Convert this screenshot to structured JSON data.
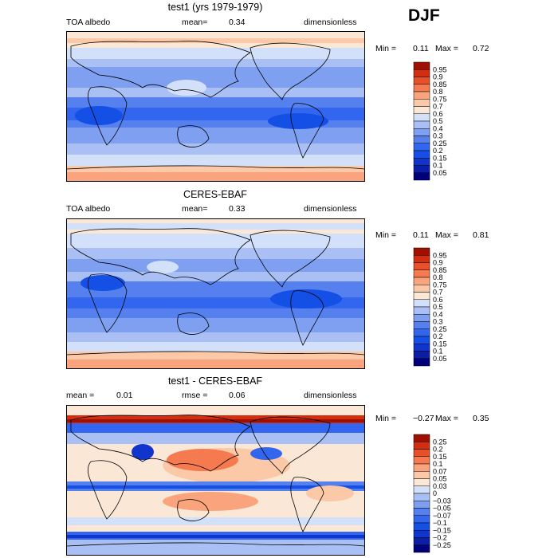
{
  "season": "DJF",
  "panels": [
    {
      "title": "test1 (yrs 1979-1979)",
      "left_label": "TOA albedo",
      "mean_label": "mean=",
      "mean_value": "0.34",
      "right_label": "dimensionless",
      "min_label": "Min =",
      "min_value": "0.11",
      "max_label": "Max =",
      "max_value": "0.72"
    },
    {
      "title": "CERES-EBAF",
      "left_label": "TOA albedo",
      "mean_label": "mean=",
      "mean_value": "0.33",
      "right_label": "dimensionless",
      "min_label": "Min =",
      "min_value": "0.11",
      "max_label": "Max =",
      "max_value": "0.81"
    },
    {
      "title": "test1 - CERES-EBAF",
      "left_label": "mean =",
      "left_value": "0.01",
      "rmse_label": "rmse =",
      "rmse_value": "0.06",
      "right_label": "dimensionless",
      "min_label": "Min =",
      "min_value": "−0.27",
      "max_label": "Max =",
      "max_value": "0.35"
    }
  ],
  "chart_data": [
    {
      "type": "heatmap",
      "title": "test1 (yrs 1979-1979)",
      "variable": "TOA albedo",
      "units": "dimensionless",
      "mean": 0.34,
      "min": 0.11,
      "max": 0.72,
      "colorbar_levels": [
        "0.05",
        "0.1",
        "0.15",
        "0.2",
        "0.25",
        "0.3",
        "0.4",
        "0.5",
        "0.6",
        "0.7",
        "0.75",
        "0.8",
        "0.85",
        "0.9",
        "0.95"
      ],
      "colorbar_colors": [
        "#00007a",
        "#0a1ea8",
        "#0f35cc",
        "#1450e6",
        "#3366ee",
        "#5580ee",
        "#7fa0f0",
        "#aac0f5",
        "#d2e0fa",
        "#fbe7d5",
        "#fcc9a8",
        "#f9a47c",
        "#f57a50",
        "#e85028",
        "#d42e10",
        "#a01000"
      ]
    },
    {
      "type": "heatmap",
      "title": "CERES-EBAF",
      "variable": "TOA albedo",
      "units": "dimensionless",
      "mean": 0.33,
      "min": 0.11,
      "max": 0.81,
      "colorbar_levels": [
        "0.05",
        "0.1",
        "0.15",
        "0.2",
        "0.25",
        "0.3",
        "0.4",
        "0.5",
        "0.6",
        "0.7",
        "0.75",
        "0.8",
        "0.85",
        "0.9",
        "0.95"
      ],
      "colorbar_colors": [
        "#00007a",
        "#0a1ea8",
        "#0f35cc",
        "#1450e6",
        "#3366ee",
        "#5580ee",
        "#7fa0f0",
        "#aac0f5",
        "#d2e0fa",
        "#fbe7d5",
        "#fcc9a8",
        "#f9a47c",
        "#f57a50",
        "#e85028",
        "#d42e10",
        "#a01000"
      ]
    },
    {
      "type": "heatmap",
      "title": "test1 - CERES-EBAF",
      "units": "dimensionless",
      "mean": 0.01,
      "rmse": 0.06,
      "min": -0.27,
      "max": 0.35,
      "colorbar_levels": [
        "−0.25",
        "−0.2",
        "−0.15",
        "−0.1",
        "−0.07",
        "−0.05",
        "−0.03",
        "0",
        "0.03",
        "0.05",
        "0.07",
        "0.1",
        "0.15",
        "0.2",
        "0.25"
      ],
      "colorbar_colors": [
        "#00007a",
        "#0a1ea8",
        "#0f35cc",
        "#1450e6",
        "#3366ee",
        "#5580ee",
        "#7fa0f0",
        "#aac0f5",
        "#d2e0fa",
        "#fbe7d5",
        "#fcc9a8",
        "#f9a47c",
        "#f57a50",
        "#e85028",
        "#d42e10",
        "#a01000"
      ]
    }
  ]
}
